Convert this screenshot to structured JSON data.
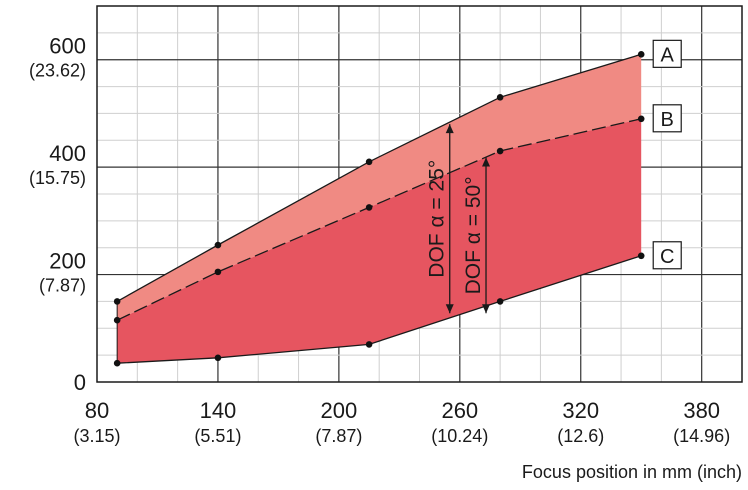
{
  "chart_data": {
    "type": "area",
    "title": "",
    "xlabel": "Focus position in mm (inch)",
    "ylabel": "",
    "xlim": [
      80,
      400
    ],
    "ylim": [
      0,
      700
    ],
    "grid": true,
    "x_ticks": [
      {
        "value": 80,
        "label": "80",
        "sub": "(3.15)"
      },
      {
        "value": 140,
        "label": "140",
        "sub": "(5.51)"
      },
      {
        "value": 200,
        "label": "200",
        "sub": "(7.87)"
      },
      {
        "value": 260,
        "label": "260",
        "sub": "(10.24)"
      },
      {
        "value": 320,
        "label": "320",
        "sub": "(12.6)"
      },
      {
        "value": 380,
        "label": "380",
        "sub": "(14.96)"
      }
    ],
    "y_ticks": [
      {
        "value": 0,
        "label": "0",
        "sub": ""
      },
      {
        "value": 200,
        "label": "200",
        "sub": "(7.87)"
      },
      {
        "value": 400,
        "label": "400",
        "sub": "(15.75)"
      },
      {
        "value": 600,
        "label": "600",
        "sub": "(23.62)"
      }
    ],
    "series": [
      {
        "name": "A",
        "x": [
          90,
          140,
          215,
          280,
          350
        ],
        "y": [
          150,
          255,
          410,
          530,
          610
        ]
      },
      {
        "name": "B",
        "x": [
          90,
          140,
          215,
          280,
          350
        ],
        "y": [
          115,
          205,
          325,
          430,
          490
        ]
      },
      {
        "name": "C",
        "x": [
          90,
          140,
          215,
          280,
          350
        ],
        "y": [
          35,
          45,
          70,
          150,
          235
        ]
      }
    ],
    "annotations": [
      {
        "text": "DOF α = 25°",
        "x": 255,
        "y_range": [
          128,
          480
        ]
      },
      {
        "text": "DOF α = 50°",
        "x": 273,
        "y_range": [
          128,
          418
        ]
      }
    ],
    "colors": {
      "band_upper": "#f08a83",
      "band_lower": "#e65560",
      "grid": "#cfcfcf",
      "axis": "#1a1a1a"
    }
  }
}
